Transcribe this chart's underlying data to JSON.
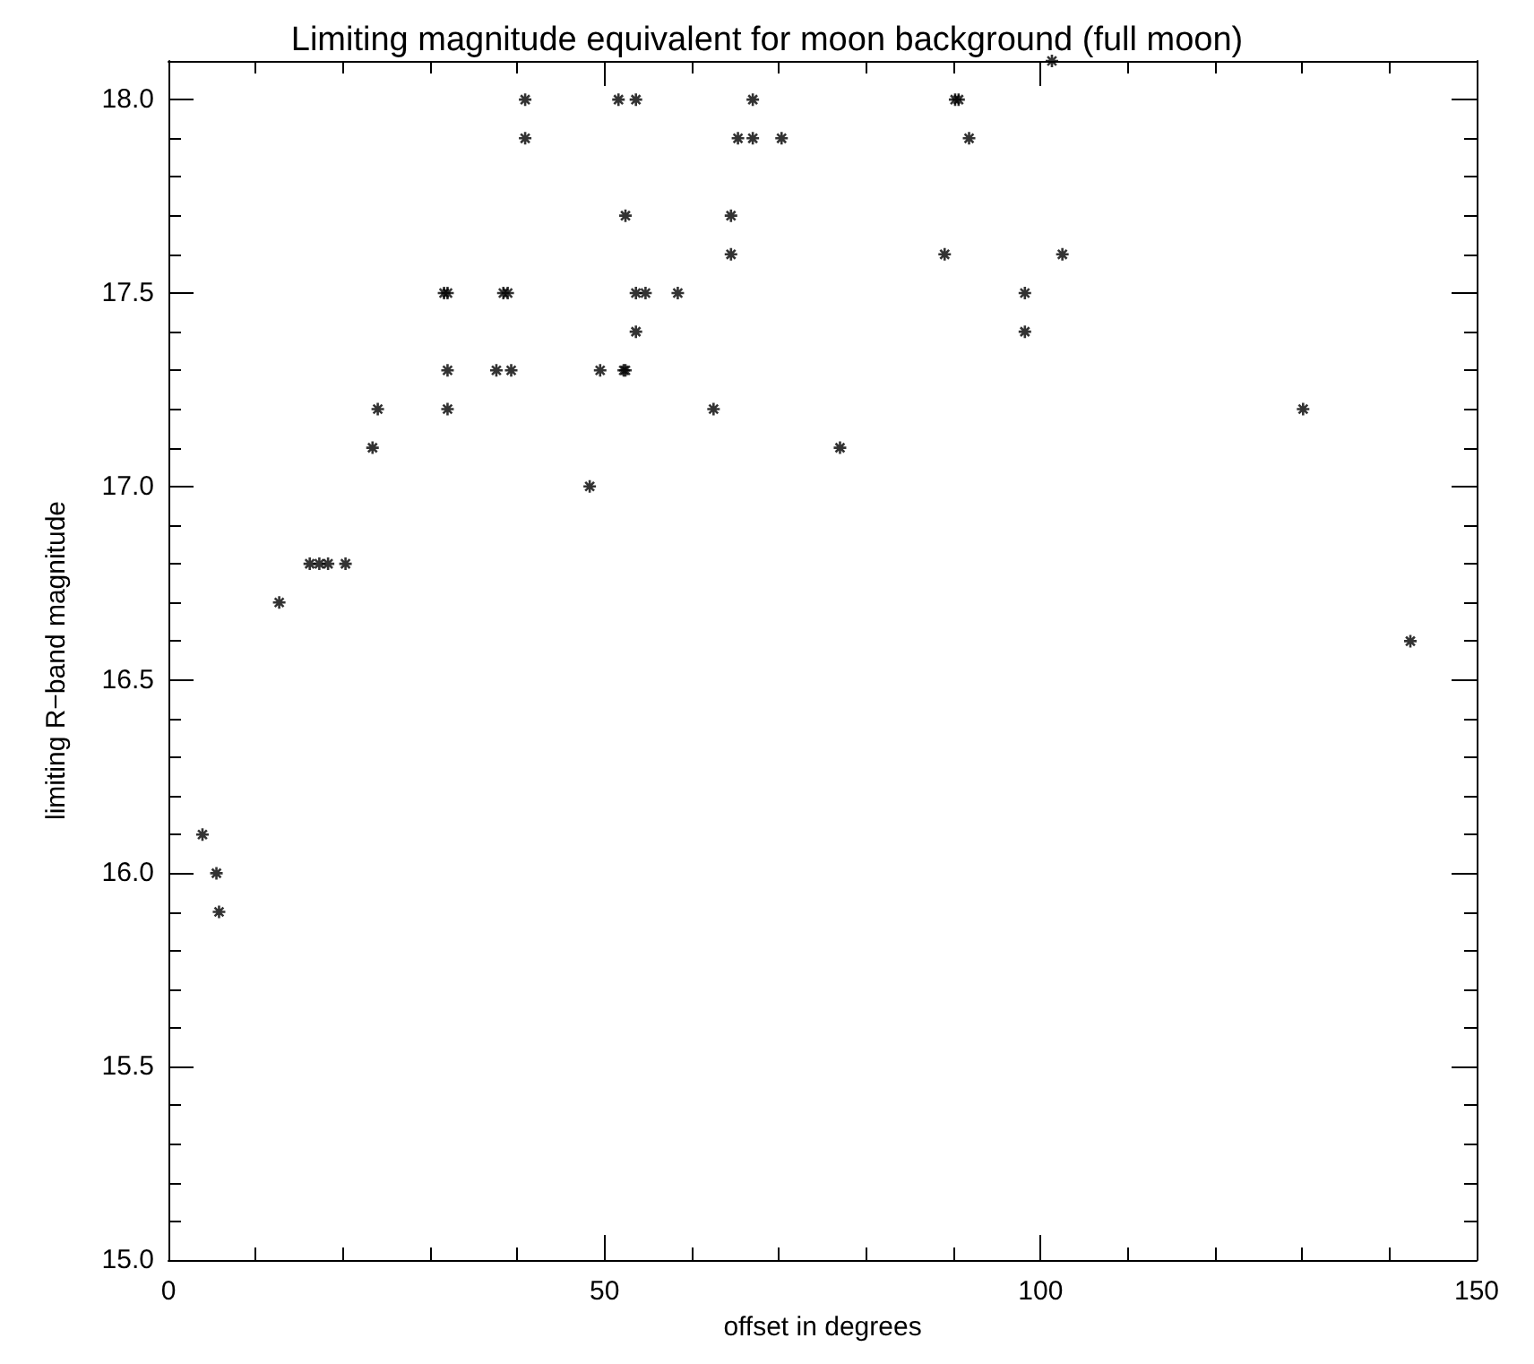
{
  "chart_data": {
    "type": "scatter",
    "title": "Limiting magnitude equivalent for moon background (full moon)",
    "xlabel": "offset in degrees",
    "ylabel": "limiting R−band magnitude",
    "marker": "cross",
    "grid": false,
    "xlim": [
      0,
      150
    ],
    "xticks": [
      0,
      50,
      100,
      150
    ],
    "ylim": [
      15,
      18.1
    ],
    "yticks": [
      {
        "value": 15,
        "label": "15.0"
      },
      {
        "value": 15.5,
        "label": "15.5"
      },
      {
        "value": 16,
        "label": "16.0"
      },
      {
        "value": 16.5,
        "label": "16.5"
      },
      {
        "value": 17,
        "label": "17.0"
      },
      {
        "value": 17.5,
        "label": "17.5"
      },
      {
        "value": 18,
        "label": "18.0"
      }
    ],
    "series": [
      {
        "color": "#000000",
        "x": [
          3.9,
          5.5,
          5.8,
          12.7,
          16.2,
          17.3,
          18.3,
          20.3,
          23.4,
          24.0,
          31.6,
          32.0,
          32.0,
          32.0,
          37.6,
          38.4,
          38.9,
          39.3,
          40.9,
          40.9,
          48.3,
          49.5,
          51.6,
          52.2,
          52.4,
          52.4,
          53.6,
          53.6,
          54.7,
          53.6,
          58.4,
          62.5,
          64.5,
          64.5,
          65.3,
          67.0,
          67.0,
          70.3,
          77.0,
          89.0,
          90.2,
          90.6,
          91.8,
          98.2,
          98.2,
          101.3,
          102.5,
          130.1,
          142.4
        ],
        "values": [
          16.1,
          16.0,
          15.9,
          16.7,
          16.8,
          16.8,
          16.8,
          16.8,
          17.1,
          17.2,
          17.5,
          17.5,
          17.3,
          17.2,
          17.3,
          17.5,
          17.5,
          17.3,
          18.0,
          17.9,
          17.0,
          17.3,
          18.0,
          17.3,
          17.7,
          17.3,
          18.0,
          17.5,
          17.5,
          17.4,
          17.5,
          17.2,
          17.7,
          17.6,
          17.9,
          18.0,
          17.9,
          17.9,
          17.1,
          17.6,
          18.0,
          18.0,
          17.9,
          17.5,
          17.4,
          18.1,
          17.6,
          17.2,
          16.6
        ]
      }
    ]
  }
}
